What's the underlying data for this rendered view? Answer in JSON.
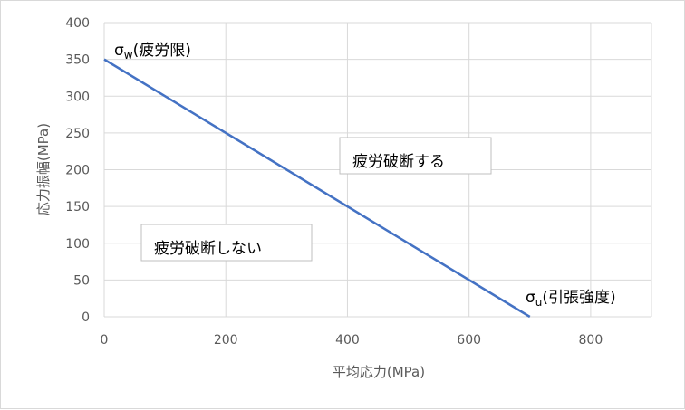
{
  "chart_data": {
    "type": "line",
    "xlabel": "平均応力(MPa)",
    "ylabel": "応力振幅(MPa)",
    "xlim": [
      0,
      900
    ],
    "ylim": [
      0,
      400
    ],
    "x_ticks": [
      0,
      200,
      400,
      600,
      800
    ],
    "y_ticks": [
      0,
      50,
      100,
      150,
      200,
      250,
      300,
      350,
      400
    ],
    "grid": true,
    "series": [
      {
        "x": [
          0,
          700
        ],
        "y": [
          350,
          0
        ],
        "color": "#4472c4"
      }
    ],
    "annotations": {
      "fatigue_limit": {
        "symbol": "σ",
        "subscript": "w",
        "text": "(疲労限)"
      },
      "tensile_strength": {
        "symbol": "σ",
        "subscript": "u",
        "text": "(引張強度)"
      },
      "fracture_label": "疲労破断する",
      "no_fracture_label": "疲労破断しない"
    }
  }
}
